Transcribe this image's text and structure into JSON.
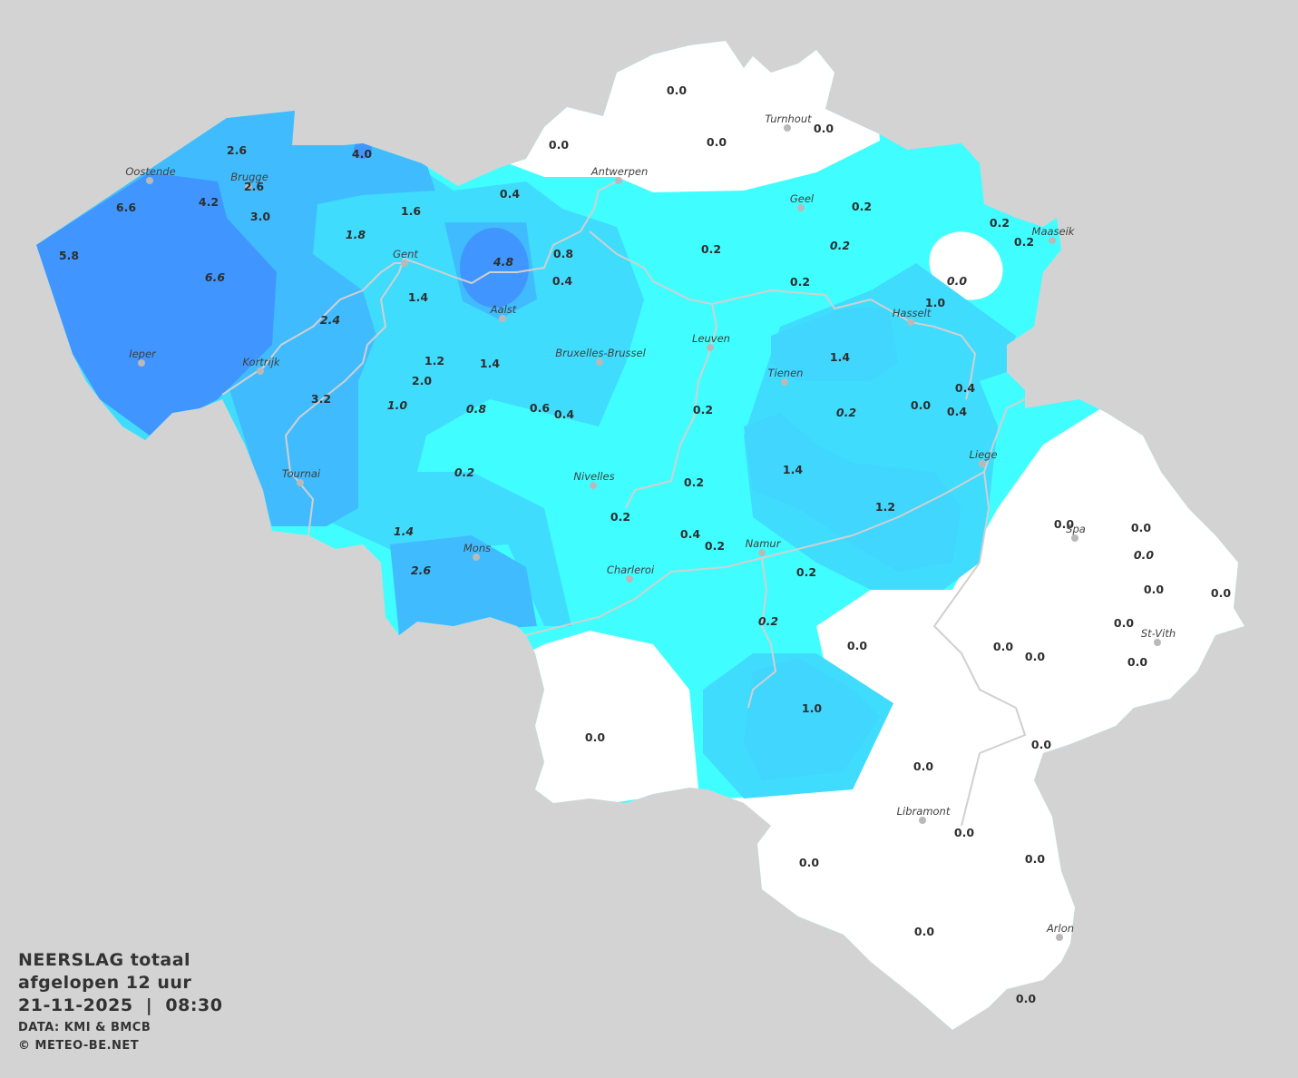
{
  "legend": {
    "title_line1": "NEERSLAG totaal",
    "title_line2": "afgelopen 12 uur",
    "datetime": "21-11-2025  |  08:30",
    "source": "DATA: KMI & BMCB",
    "copyright": "© METEO-BE.NET"
  },
  "colors": {
    "background": "#d3d3d3",
    "no_precip": "#ffffff",
    "class_low": "#40feff",
    "class_mid_low": "#40dcfe",
    "class_mid": "#40bcfe",
    "class_high": "#4096fe",
    "rivers": "#d0d0d0"
  },
  "unit_implied": "mm",
  "cities": [
    "Oostende",
    "Brugge",
    "Gent",
    "Antwerpen",
    "Turnhout",
    "Geel",
    "Maaseik",
    "Aalst",
    "Hasselt",
    "Ieper",
    "Kortrijk",
    "Leuven",
    "Bruxelles-Brussel",
    "Tienen",
    "Liege",
    "Tournai",
    "Nivelles",
    "Spa",
    "Namur",
    "Mons",
    "Charleroi",
    "St-Vith",
    "Libramont",
    "Arlon"
  ],
  "station_values": [
    "0.0",
    "0.0",
    "0.0",
    "0.0",
    "2.6",
    "4.0",
    "2.6",
    "4.2",
    "6.6",
    "3.0",
    "0.4",
    "1.6",
    "1.8",
    "5.8",
    "6.6",
    "4.8",
    "0.8",
    "0.4",
    "1.4",
    "2.4",
    "0.2",
    "0.2",
    "0.2",
    "0.2",
    "0.2",
    "0.0",
    "0.2",
    "1.0",
    "1.2",
    "1.4",
    "2.0",
    "3.2",
    "1.0",
    "0.8",
    "0.6",
    "0.4",
    "1.4",
    "0.2",
    "0.2",
    "0.0",
    "0.4",
    "0.4",
    "0.2",
    "0.2",
    "1.4",
    "1.2",
    "0.2",
    "0.4",
    "0.2",
    "1.4",
    "2.6",
    "0.2",
    "0.2",
    "0.0",
    "1.0",
    "0.0",
    "0.0",
    "0.0",
    "0.0",
    "0.0",
    "0.0",
    "0.0",
    "0.0",
    "0.0",
    "0.0",
    "0.0",
    "0.0",
    "0.0",
    "0.0",
    "0.0",
    "0.0",
    "0.0"
  ]
}
